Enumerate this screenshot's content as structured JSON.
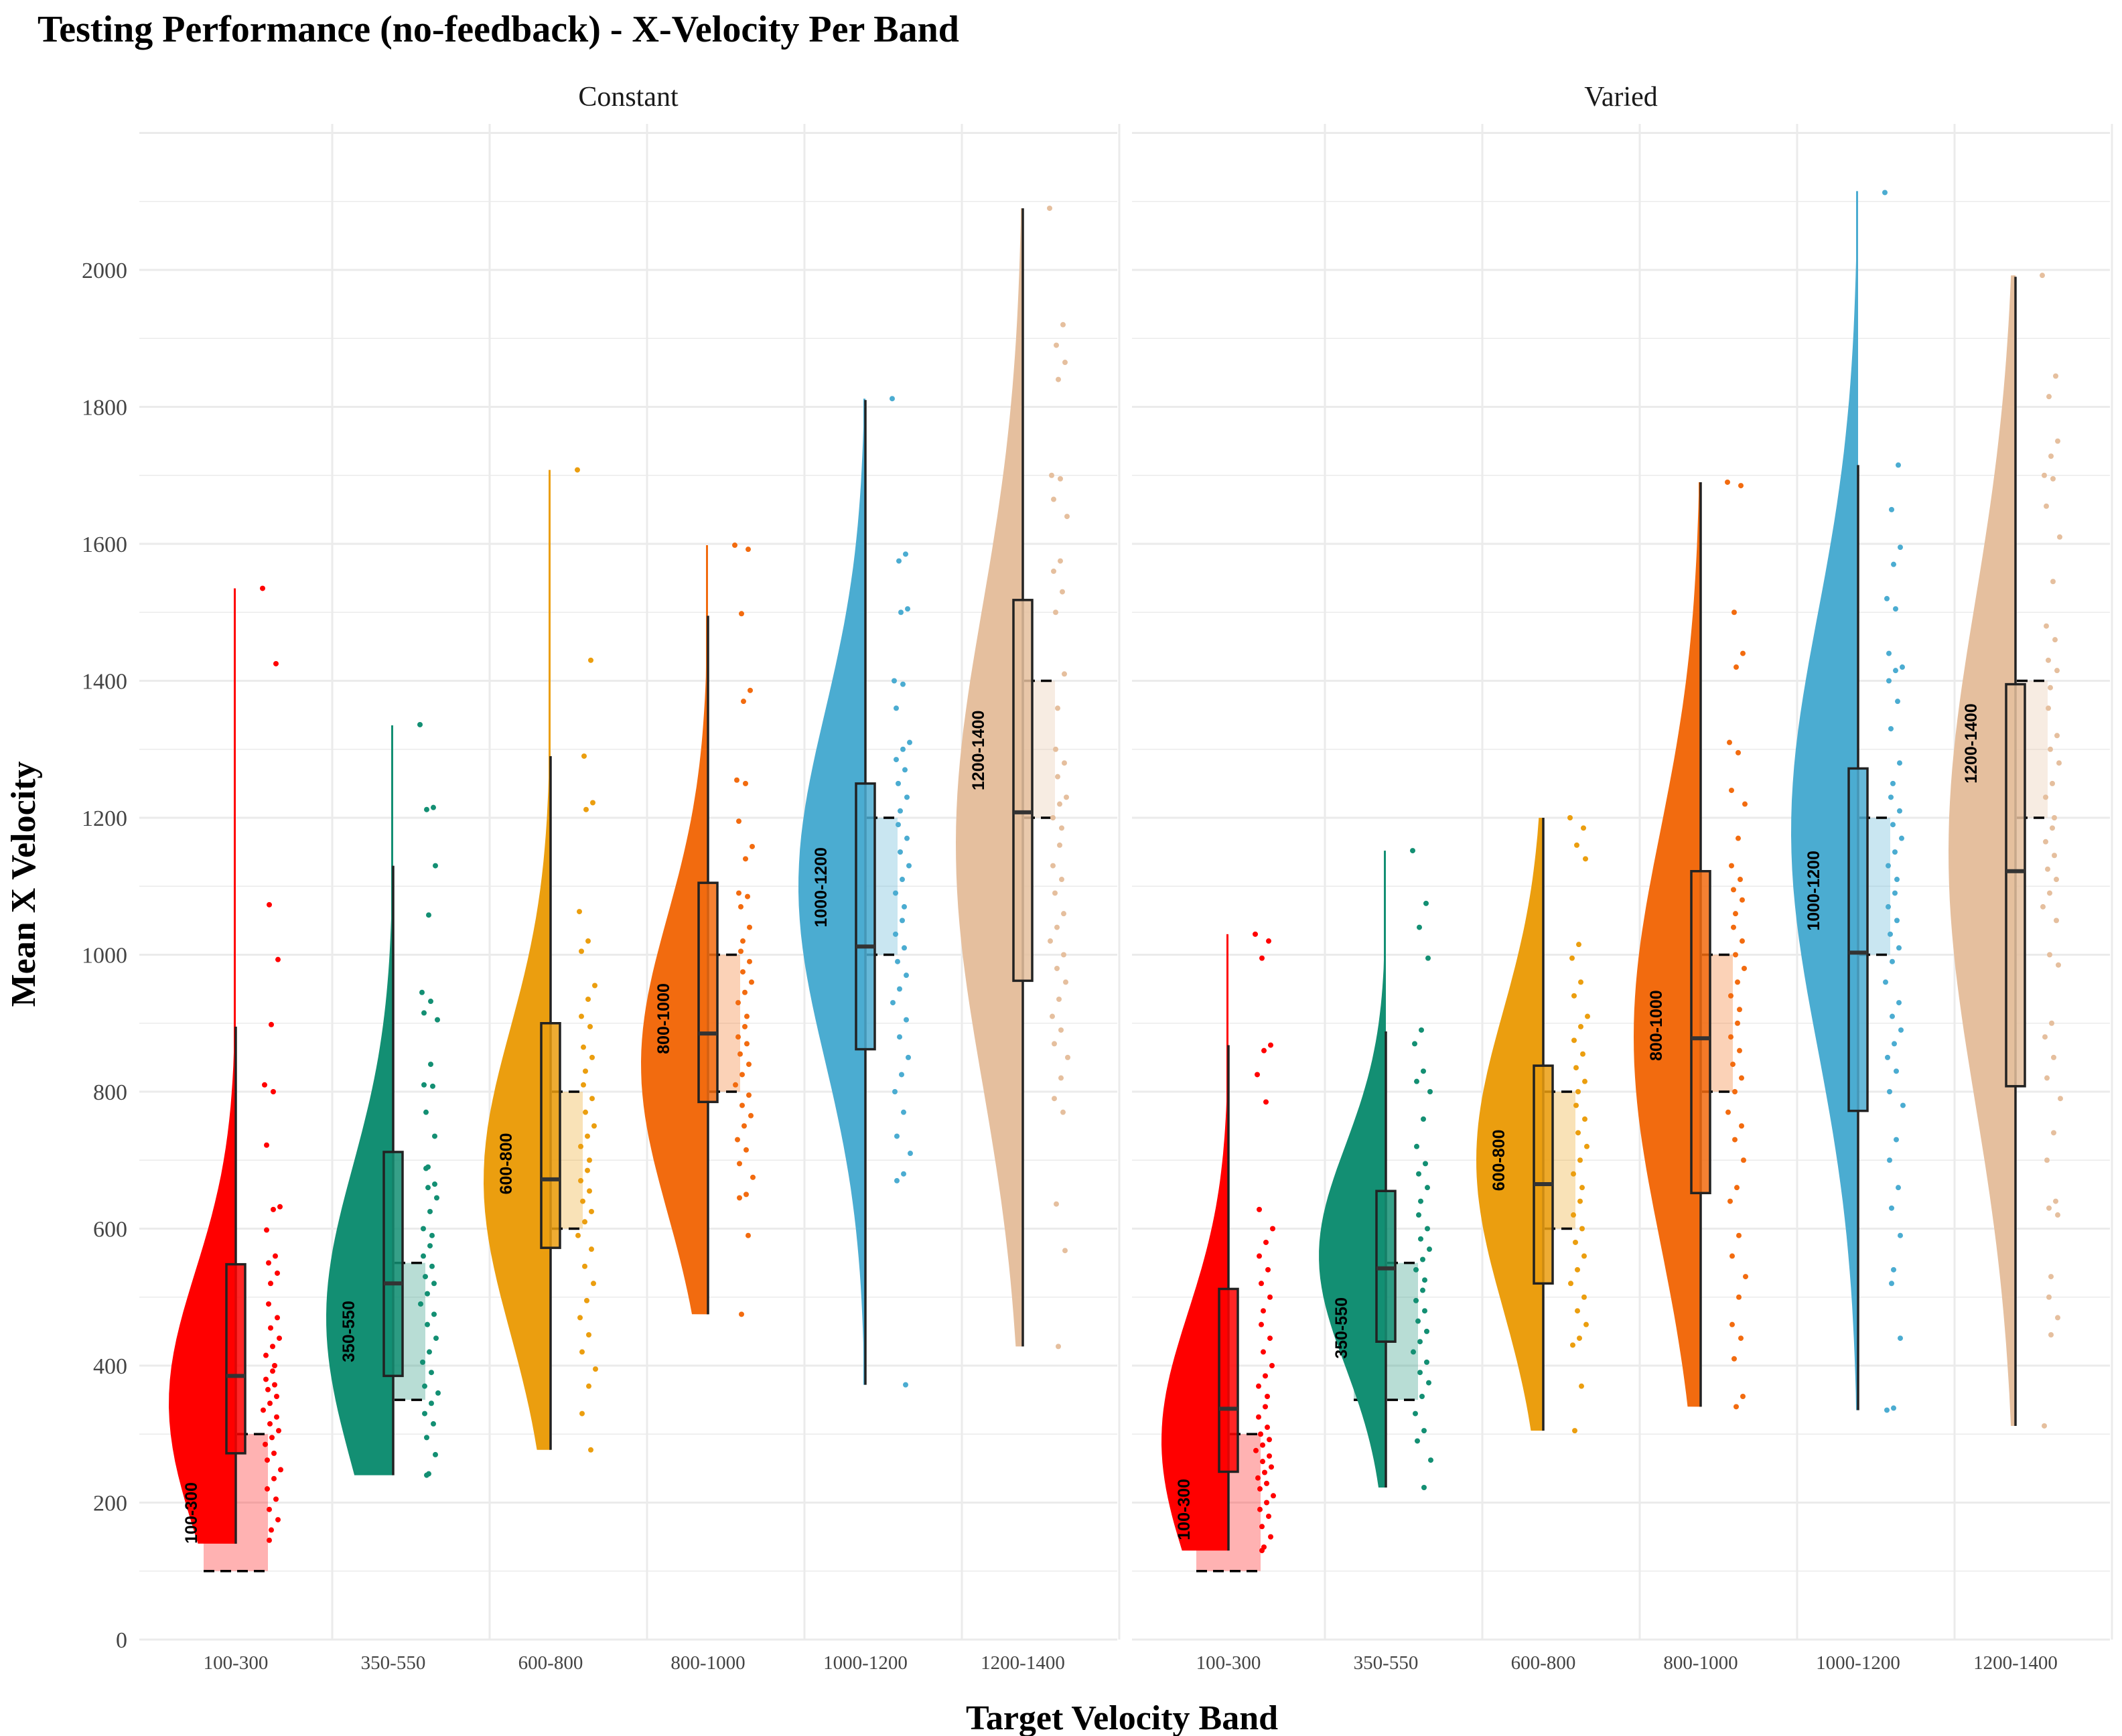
{
  "chart_data": {
    "type": "raincloud",
    "title": "Testing Performance (no-feedback) - X-Velocity Per Band",
    "xlabel": "Target Velocity Band",
    "ylabel": "Mean X Velocity",
    "ylim": [
      0,
      2200
    ],
    "yticks": [
      0,
      200,
      400,
      600,
      800,
      1000,
      1200,
      1400,
      1600,
      1800,
      2000
    ],
    "categories": [
      "100-300",
      "350-550",
      "600-800",
      "800-1000",
      "1000-1200",
      "1200-1400"
    ],
    "colors": [
      "#ff0000",
      "#138f73",
      "#eb9e0f",
      "#f26b0f",
      "#4bacd1",
      "#e5bf9e"
    ],
    "grid": true,
    "legend": "none",
    "panels": [
      {
        "name": "Constant",
        "bands": [
          {
            "label": "100-300",
            "lo": 100,
            "hi": 300,
            "label_y": 140,
            "min": 140,
            "q1": 272,
            "median": 385,
            "q3": 548,
            "max": 895,
            "vmin": 140,
            "vmax": 1535,
            "vmode": 345,
            "points": [
              1535,
              1425,
              1073,
              993,
              898,
              810,
              800,
              722,
              632,
              628,
              598,
              560,
              550,
              535,
              520,
              490,
              470,
              455,
              440,
              428,
              415,
              400,
              392,
              380,
              372,
              365,
              355,
              345,
              335,
              325,
              315,
              305,
              295,
              285,
              272,
              262,
              248,
              235,
              220,
              205,
              190,
              175,
              160,
              145
            ]
          },
          {
            "label": "350-550",
            "lo": 350,
            "hi": 550,
            "label_y": 405,
            "min": 240,
            "q1": 385,
            "median": 520,
            "q3": 712,
            "max": 1130,
            "vmin": 240,
            "vmax": 1335,
            "vmode": 470,
            "points": [
              1336,
              1215,
              1212,
              1130,
              1058,
              945,
              932,
              915,
              905,
              840,
              810,
              808,
              770,
              735,
              690,
              688,
              665,
              660,
              645,
              625,
              600,
              590,
              575,
              560,
              545,
              530,
              520,
              505,
              490,
              475,
              460,
              440,
              420,
              405,
              390,
              370,
              360,
              345,
              330,
              315,
              295,
              270,
              242,
              240
            ]
          },
          {
            "label": "600-800",
            "lo": 600,
            "hi": 800,
            "label_y": 650,
            "min": 277,
            "q1": 572,
            "median": 672,
            "q3": 900,
            "max": 1290,
            "vmin": 277,
            "vmax": 1708,
            "vmode": 670,
            "points": [
              1708,
              1430,
              1290,
              1222,
              1212,
              1063,
              1020,
              1005,
              955,
              935,
              910,
              895,
              865,
              850,
              830,
              810,
              790,
              770,
              750,
              735,
              720,
              700,
              685,
              670,
              655,
              640,
              625,
              610,
              590,
              570,
              545,
              520,
              495,
              470,
              445,
              420,
              395,
              370,
              330,
              277
            ]
          },
          {
            "label": "800-1000",
            "lo": 800,
            "hi": 1000,
            "label_y": 855,
            "min": 475,
            "q1": 785,
            "median": 885,
            "q3": 1105,
            "max": 1495,
            "vmin": 475,
            "vmax": 1598,
            "vmode": 840,
            "points": [
              1598,
              1592,
              1498,
              1386,
              1370,
              1255,
              1250,
              1195,
              1158,
              1140,
              1090,
              1085,
              1070,
              1040,
              1020,
              1005,
              990,
              975,
              960,
              945,
              930,
              910,
              895,
              880,
              870,
              855,
              840,
              825,
              810,
              795,
              780,
              765,
              750,
              730,
              715,
              695,
              675,
              650,
              645,
              590,
              475
            ]
          },
          {
            "label": "1000-1200",
            "lo": 1000,
            "hi": 1200,
            "label_y": 1040,
            "min": 372,
            "q1": 862,
            "median": 1012,
            "q3": 1250,
            "max": 1810,
            "vmin": 372,
            "vmax": 1812,
            "vmode": 1100,
            "points": [
              1812,
              1585,
              1575,
              1505,
              1500,
              1400,
              1395,
              1360,
              1310,
              1300,
              1285,
              1270,
              1250,
              1230,
              1210,
              1190,
              1170,
              1150,
              1130,
              1110,
              1090,
              1070,
              1050,
              1030,
              1010,
              990,
              970,
              950,
              930,
              905,
              880,
              850,
              825,
              800,
              770,
              735,
              710,
              680,
              670,
              372
            ]
          },
          {
            "label": "1200-1400",
            "lo": 1200,
            "hi": 1400,
            "label_y": 1240,
            "min": 428,
            "q1": 962,
            "median": 1208,
            "q3": 1518,
            "max": 2090,
            "vmin": 428,
            "vmax": 2090,
            "vmode": 1160,
            "points": [
              2090,
              1920,
              1890,
              1865,
              1840,
              1700,
              1695,
              1665,
              1640,
              1575,
              1560,
              1530,
              1500,
              1410,
              1360,
              1300,
              1280,
              1260,
              1230,
              1220,
              1200,
              1185,
              1160,
              1130,
              1110,
              1090,
              1060,
              1040,
              1020,
              1000,
              980,
              960,
              935,
              910,
              890,
              870,
              850,
              820,
              790,
              770,
              636,
              568,
              428
            ]
          }
        ]
      },
      {
        "name": "Varied",
        "bands": [
          {
            "label": "100-300",
            "lo": 100,
            "hi": 300,
            "label_y": 145,
            "min": 130,
            "q1": 245,
            "median": 337,
            "q3": 512,
            "max": 868,
            "vmin": 130,
            "vmax": 1030,
            "vmode": 290,
            "points": [
              1030,
              1020,
              995,
              868,
              860,
              825,
              785,
              628,
              600,
              580,
              560,
              540,
              520,
              500,
              480,
              460,
              440,
              420,
              400,
              385,
              370,
              355,
              340,
              325,
              310,
              300,
              292,
              284,
              276,
              268,
              260,
              252,
              244,
              236,
              228,
              220,
              210,
              200,
              190,
              180,
              165,
              150,
              135,
              130
            ]
          },
          {
            "label": "350-550",
            "lo": 350,
            "hi": 550,
            "label_y": 410,
            "min": 222,
            "q1": 435,
            "median": 542,
            "q3": 655,
            "max": 888,
            "vmin": 222,
            "vmax": 1152,
            "vmode": 560,
            "points": [
              1152,
              1075,
              1040,
              995,
              890,
              870,
              830,
              815,
              800,
              760,
              720,
              695,
              680,
              660,
              640,
              620,
              600,
              585,
              570,
              555,
              540,
              525,
              510,
              495,
              480,
              465,
              450,
              435,
              420,
              405,
              390,
              375,
              355,
              330,
              305,
              290,
              262,
              222
            ]
          },
          {
            "label": "600-800",
            "lo": 600,
            "hi": 800,
            "label_y": 655,
            "min": 305,
            "q1": 520,
            "median": 665,
            "q3": 838,
            "max": 1200,
            "vmin": 305,
            "vmax": 1200,
            "vmode": 700,
            "points": [
              1200,
              1185,
              1160,
              1140,
              1015,
              995,
              960,
              940,
              910,
              895,
              875,
              855,
              835,
              815,
              800,
              780,
              760,
              740,
              720,
              700,
              680,
              660,
              640,
              620,
              600,
              580,
              560,
              540,
              520,
              500,
              480,
              460,
              440,
              430,
              370,
              305
            ]
          },
          {
            "label": "800-1000",
            "lo": 800,
            "hi": 1000,
            "label_y": 845,
            "min": 340,
            "q1": 652,
            "median": 878,
            "q3": 1122,
            "max": 1690,
            "vmin": 340,
            "vmax": 1690,
            "vmode": 880,
            "points": [
              1690,
              1685,
              1500,
              1440,
              1420,
              1310,
              1295,
              1240,
              1220,
              1170,
              1130,
              1110,
              1095,
              1080,
              1060,
              1040,
              1020,
              1000,
              980,
              960,
              940,
              920,
              900,
              880,
              860,
              840,
              820,
              800,
              770,
              750,
              730,
              700,
              660,
              640,
              590,
              560,
              530,
              500,
              460,
              440,
              410,
              355,
              340
            ]
          },
          {
            "label": "1000-1200",
            "lo": 1000,
            "hi": 1200,
            "label_y": 1035,
            "min": 335,
            "q1": 772,
            "median": 1003,
            "q3": 1272,
            "max": 1715,
            "vmin": 335,
            "vmax": 2115,
            "vmode": 1180,
            "points": [
              2113,
              1715,
              1650,
              1595,
              1570,
              1520,
              1505,
              1440,
              1420,
              1415,
              1400,
              1370,
              1330,
              1280,
              1250,
              1230,
              1210,
              1190,
              1170,
              1150,
              1130,
              1110,
              1090,
              1070,
              1050,
              1030,
              1010,
              990,
              960,
              930,
              910,
              890,
              870,
              850,
              830,
              800,
              780,
              730,
              700,
              660,
              630,
              590,
              540,
              520,
              440,
              338,
              335
            ]
          },
          {
            "label": "1200-1400",
            "lo": 1200,
            "hi": 1400,
            "label_y": 1250,
            "min": 312,
            "q1": 808,
            "median": 1122,
            "q3": 1395,
            "max": 1990,
            "vmin": 312,
            "vmax": 1992,
            "vmode": 1150,
            "points": [
              1992,
              1845,
              1815,
              1750,
              1728,
              1700,
              1695,
              1655,
              1610,
              1545,
              1480,
              1460,
              1430,
              1415,
              1390,
              1360,
              1320,
              1300,
              1280,
              1250,
              1230,
              1200,
              1185,
              1165,
              1145,
              1125,
              1110,
              1090,
              1070,
              1050,
              1000,
              985,
              900,
              880,
              850,
              820,
              790,
              740,
              700,
              640,
              630,
              620,
              530,
              500,
              470,
              445,
              312
            ]
          }
        ]
      }
    ]
  }
}
